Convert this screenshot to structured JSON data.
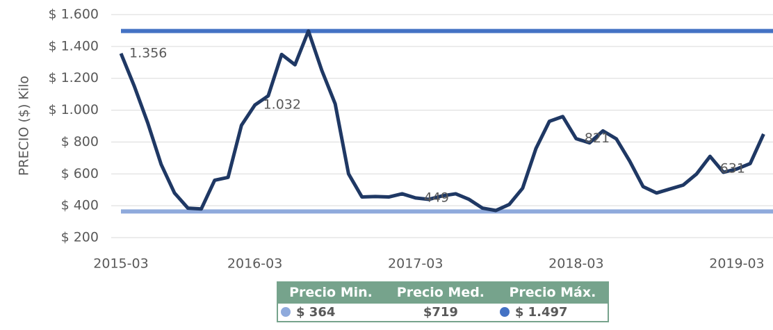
{
  "chart_data": {
    "type": "line",
    "y_label": "PRECIO ($) Kilo",
    "categories": [
      "2015-03",
      null,
      null,
      null,
      null,
      null,
      null,
      null,
      null,
      null,
      "2016-03",
      null,
      null,
      null,
      null,
      null,
      null,
      null,
      null,
      null,
      null,
      null,
      "2017-03",
      null,
      null,
      null,
      null,
      null,
      null,
      null,
      null,
      null,
      null,
      null,
      "2018-03",
      null,
      null,
      null,
      null,
      null,
      null,
      null,
      null,
      null,
      null,
      null,
      "2019-03",
      null,
      null
    ],
    "series": [
      {
        "color": "#1f3864",
        "values": [
          1356,
          1150,
          920,
          660,
          480,
          385,
          380,
          560,
          578,
          905,
          1032,
          1090,
          1350,
          1285,
          1497,
          1250,
          1040,
          600,
          455,
          458,
          455,
          475,
          449,
          440,
          462,
          475,
          440,
          385,
          370,
          408,
          510,
          760,
          930,
          960,
          821,
          795,
          870,
          820,
          680,
          520,
          480,
          505,
          530,
          600,
          710,
          610,
          631,
          665,
          850
        ],
        "value_labels": [
          "1.356",
          null,
          null,
          null,
          null,
          null,
          null,
          null,
          null,
          null,
          "1.032",
          null,
          null,
          null,
          null,
          null,
          null,
          null,
          null,
          null,
          null,
          null,
          "449",
          null,
          null,
          null,
          null,
          null,
          null,
          null,
          null,
          null,
          null,
          null,
          "821",
          null,
          null,
          null,
          null,
          null,
          null,
          null,
          null,
          null,
          null,
          null,
          "631",
          null,
          null
        ]
      }
    ],
    "ylim": [
      200,
      1600
    ],
    "yticks": [
      {
        "value": 200,
        "label": "$ 200"
      },
      {
        "value": 400,
        "label": "$ 400"
      },
      {
        "value": 600,
        "label": "$ 600"
      },
      {
        "value": 800,
        "label": "$ 800"
      },
      {
        "value": 1000,
        "label": "$ 1.000"
      },
      {
        "value": 1200,
        "label": "$ 1.200"
      },
      {
        "value": 1400,
        "label": "$ 1.400"
      },
      {
        "value": 1600,
        "label": "$ 1.600"
      }
    ],
    "grid": true,
    "summary": [
      {
        "name": "Precio Min.",
        "value": 364,
        "label": "$ 364",
        "color": "#8faadc"
      },
      {
        "name": "Precio Med.",
        "label": "$719"
      },
      {
        "name": "Precio Máx.",
        "value": 1497,
        "label": "$ 1.497",
        "color": "#4472c4"
      }
    ]
  }
}
